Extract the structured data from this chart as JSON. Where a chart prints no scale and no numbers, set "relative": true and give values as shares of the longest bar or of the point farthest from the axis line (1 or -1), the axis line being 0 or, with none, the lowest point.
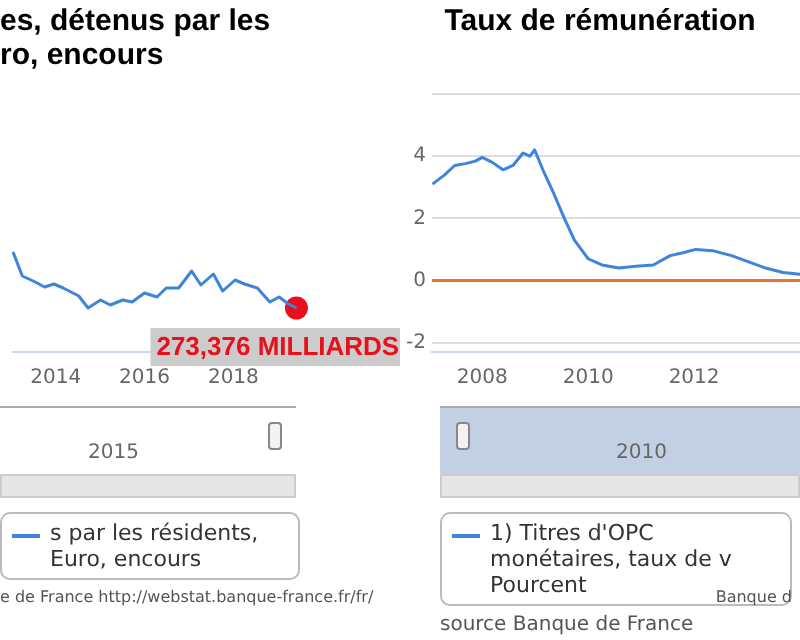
{
  "chart_data": [
    {
      "type": "line",
      "title": "es, détenus par les\nro, encours",
      "relative": true,
      "x": [
        2013.04,
        2013.25,
        2013.54,
        2013.75,
        2013.96,
        2014.17,
        2014.52,
        2014.73,
        2015.01,
        2015.23,
        2015.51,
        2015.72,
        2016.0,
        2016.28,
        2016.49,
        2016.77,
        2017.06,
        2017.27,
        2017.55,
        2017.76,
        2018.04,
        2018.25,
        2018.54,
        2018.82,
        2019.03,
        2019.24,
        2019.42
      ],
      "xlim": [
        2013.04,
        2019.5
      ],
      "xticks": [
        2014,
        2016,
        2018
      ],
      "legend": "bottom",
      "series": [
        {
          "name": "s par les résidents, Euro, encours",
          "color": "#3d85d8",
          "values": [
            1.0,
            0.76,
            0.7,
            0.65,
            0.68,
            0.64,
            0.56,
            0.44,
            0.52,
            0.47,
            0.52,
            0.5,
            0.59,
            0.55,
            0.64,
            0.64,
            0.81,
            0.67,
            0.78,
            0.61,
            0.72,
            0.68,
            0.64,
            0.5,
            0.55,
            0.48,
            0.44
          ]
        },
        {
          "type": "scatter",
          "x": [
            2019.42
          ],
          "color": "#e8101a",
          "values": [
            0.44
          ]
        }
      ],
      "annotations": [
        "2015",
        {
          "text": "273,376 MILLIARDS",
          "x": 2019.42,
          "y": 0.44
        },
        "e de France http://webstat.banque-france.fr/fr/"
      ]
    },
    {
      "type": "line",
      "title": "Taux de rémunération",
      "x": [
        2007.06,
        2007.29,
        2007.48,
        2007.68,
        2007.87,
        2008.0,
        2008.19,
        2008.39,
        2008.58,
        2008.77,
        2008.9,
        2008.99,
        2009.16,
        2009.35,
        2009.55,
        2009.74,
        2010.0,
        2010.26,
        2010.58,
        2010.9,
        2011.23,
        2011.55,
        2011.81,
        2012.03,
        2012.35,
        2012.71,
        2013.03,
        2013.35,
        2013.68,
        2014.0
      ],
      "xlim": [
        2007.05,
        2014.0
      ],
      "xticks": [
        2008,
        2010,
        2012
      ],
      "ylim": [
        -2.3,
        6
      ],
      "yticks": [
        -2,
        0,
        2,
        4,
        {
          "value": 6,
          "label": null
        }
      ],
      "grid": "y",
      "legend": "bottom",
      "ref_lines": [
        {
          "axis": "y",
          "value": 0,
          "color": "#e8762c"
        }
      ],
      "series": [
        {
          "name": "1) Titres d'OPC monétaires, taux de v\nPourcent",
          "color": "#3d85d8",
          "values": [
            3.1,
            3.4,
            3.7,
            3.76,
            3.84,
            3.96,
            3.8,
            3.56,
            3.7,
            4.1,
            4.0,
            4.2,
            3.5,
            2.8,
            2.0,
            1.3,
            0.7,
            0.5,
            0.4,
            0.46,
            0.5,
            0.8,
            0.9,
            1.0,
            0.96,
            0.8,
            0.6,
            0.4,
            0.26,
            0.2
          ]
        }
      ],
      "annotations": [
        "2010",
        "Banque d",
        "source Banque de France"
      ]
    }
  ]
}
